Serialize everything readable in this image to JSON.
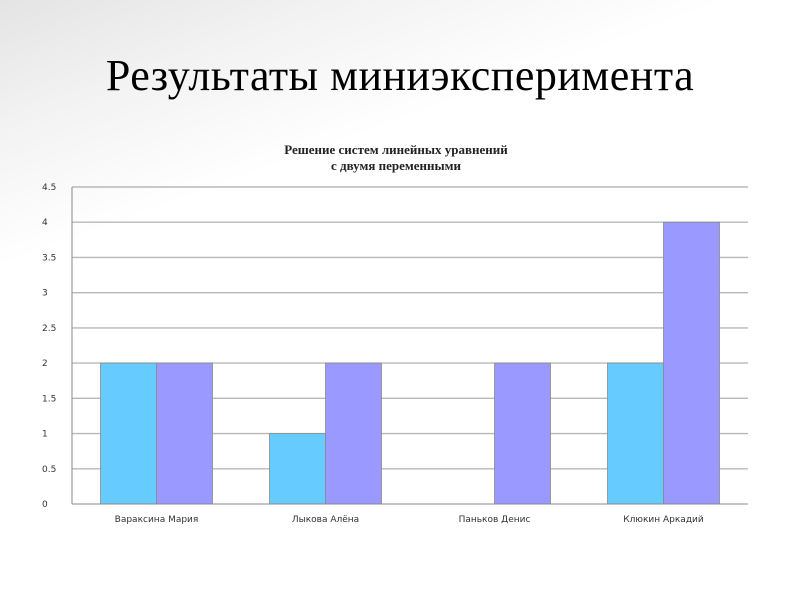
{
  "slide": {
    "title": "Результаты миниэксперимента"
  },
  "chart_data": {
    "type": "bar",
    "title": [
      "Решение систем линейных уравнений",
      "с двумя переменными"
    ],
    "categories": [
      "Вараксина Мария",
      "Лыкова Алёна",
      "Паньков Денис",
      "Клюкин Аркадий"
    ],
    "series": [
      {
        "color": "#66ccff",
        "values": [
          2,
          1,
          0,
          2
        ]
      },
      {
        "color": "#9999ff",
        "values": [
          2,
          2,
          2,
          4
        ]
      }
    ],
    "ylim": [
      0,
      4.5
    ],
    "yticks": [
      "0",
      "0.5",
      "1",
      "1.5",
      "2",
      "2.5",
      "3",
      "3.5",
      "4",
      "4.5"
    ],
    "grid": true,
    "legend": "none"
  }
}
